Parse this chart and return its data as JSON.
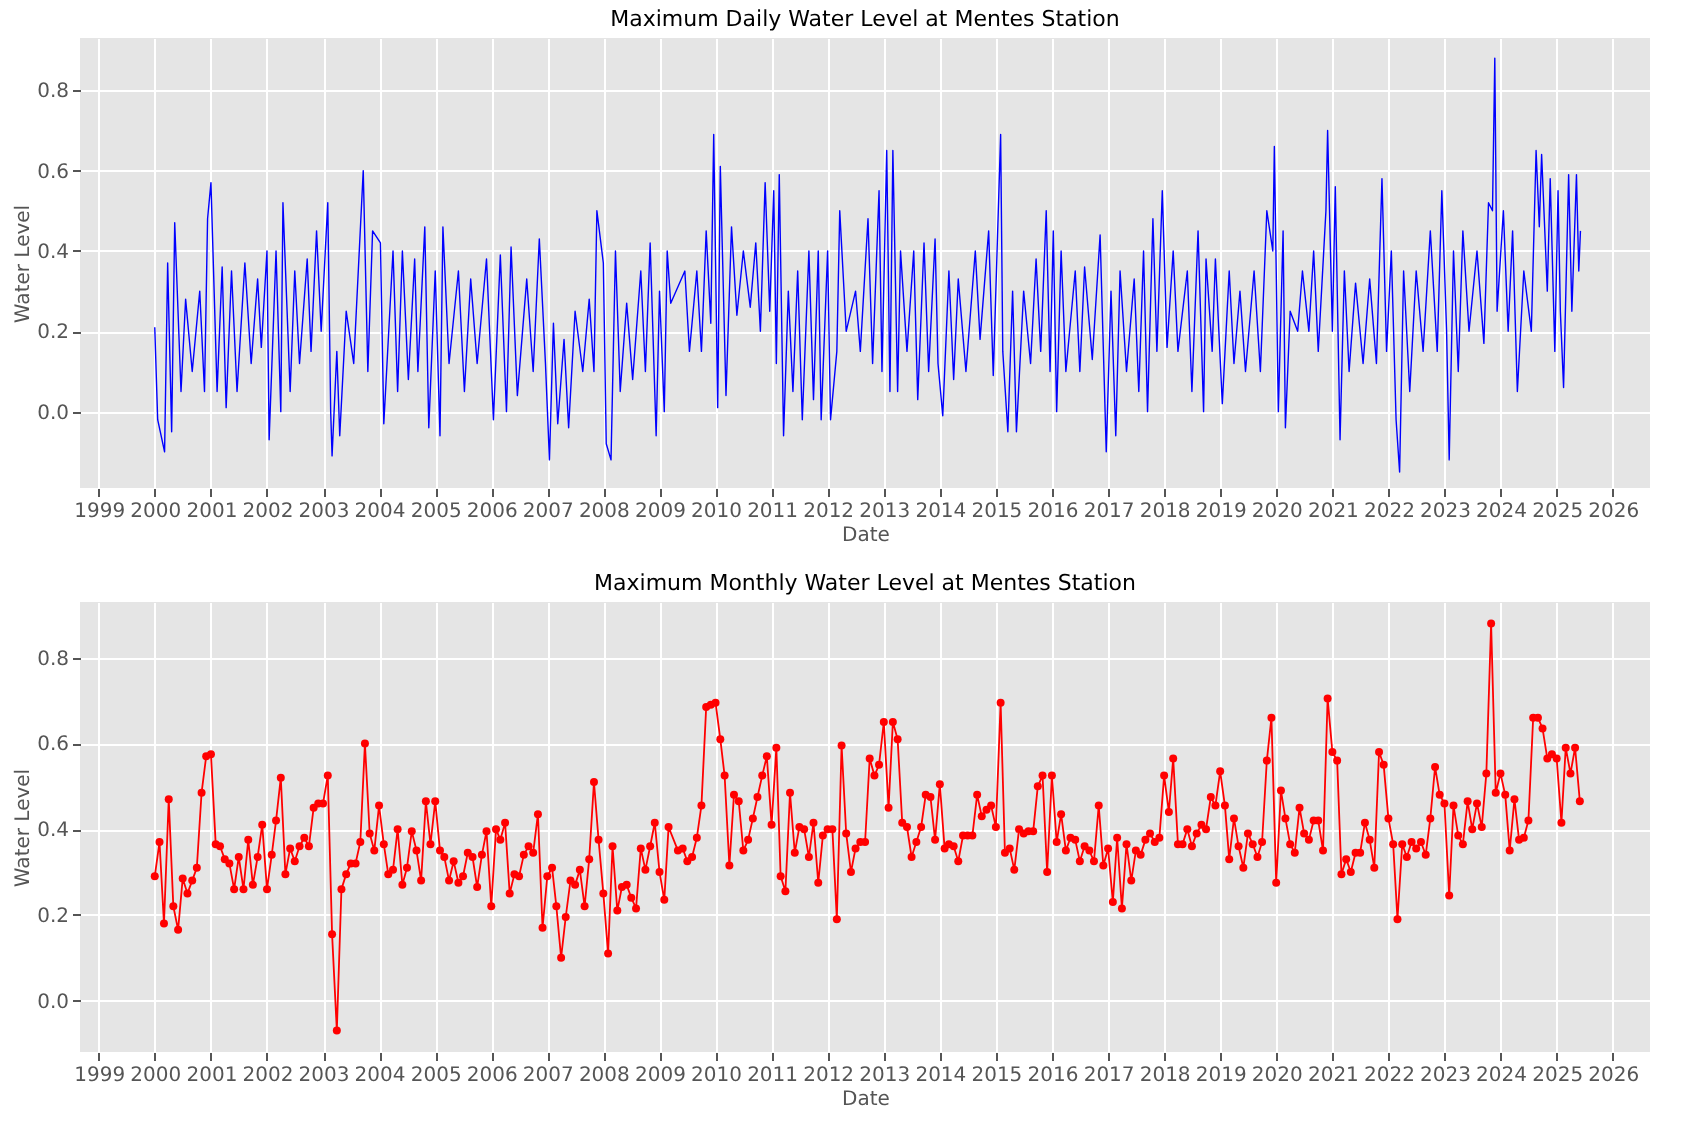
{
  "chart_data": [
    {
      "type": "line",
      "title": "Maximum Daily Water Level at Mentes Station",
      "xlabel": "Date",
      "ylabel": "Water Level",
      "grid": true,
      "xlim": [
        "1998-09",
        "2026-09"
      ],
      "ylim": [
        -0.19,
        0.93
      ],
      "xticks": [
        "1999",
        "2000",
        "2001",
        "2002",
        "2003",
        "2004",
        "2005",
        "2006",
        "2007",
        "2008",
        "2009",
        "2010",
        "2011",
        "2012",
        "2013",
        "2014",
        "2015",
        "2016",
        "2017",
        "2018",
        "2019",
        "2020",
        "2021",
        "2022",
        "2023",
        "2024",
        "2025",
        "2026"
      ],
      "yticks": [
        {
          "value": 0,
          "label": "0.0"
        },
        0.2,
        0.4,
        0.6,
        0.8
      ],
      "x": [
        "2000-01-01",
        "2000-01-20",
        "2000-03-05",
        "2000-03-25",
        "2000-04-20",
        "2000-05-10",
        "2000-06-20",
        "2000-07-20",
        "2000-09-01",
        "2000-10-20",
        "2000-11-20",
        "2000-12-10",
        "2001-01-01",
        "2001-02-10",
        "2001-03-15",
        "2001-04-10",
        "2001-05-15",
        "2001-06-20",
        "2001-08-10",
        "2001-09-20",
        "2001-11-01",
        "2001-11-25",
        "2002-01-01",
        "2002-01-15",
        "2002-03-01",
        "2002-04-01",
        "2002-04-15",
        "2002-06-01",
        "2002-07-01",
        "2002-08-01",
        "2002-09-20",
        "2002-10-15",
        "2002-11-20",
        "2002-12-20",
        "2003-02-01",
        "2003-02-20",
        "2003-03-01",
        "2003-04-01",
        "2003-04-20",
        "2003-06-01",
        "2003-07-20",
        "2003-09-20",
        "2003-10-20",
        "2003-11-20",
        "2004-01-10",
        "2004-02-01",
        "2004-04-01",
        "2004-05-01",
        "2004-06-01",
        "2004-07-10",
        "2004-08-20",
        "2004-09-10",
        "2004-10-25",
        "2004-11-20",
        "2005-01-01",
        "2005-02-01",
        "2005-02-20",
        "2005-04-01",
        "2005-06-01",
        "2005-07-10",
        "2005-08-20",
        "2005-10-01",
        "2005-12-01",
        "2006-01-15",
        "2006-03-01",
        "2006-04-10",
        "2006-05-10",
        "2006-06-20",
        "2006-08-20",
        "2006-10-01",
        "2006-11-10",
        "2006-12-20",
        "2007-01-15",
        "2007-02-10",
        "2007-03-10",
        "2007-04-20",
        "2007-05-20",
        "2007-07-01",
        "2007-08-20",
        "2007-10-01",
        "2007-11-01",
        "2007-11-20",
        "2008-01-01",
        "2008-01-20",
        "2008-02-20",
        "2008-03-20",
        "2008-04-20",
        "2008-06-01",
        "2008-07-10",
        "2008-09-01",
        "2008-10-01",
        "2008-11-01",
        "2008-12-10",
        "2009-01-01",
        "2009-02-01",
        "2009-02-20",
        "2009-03-15",
        "2009-06-15",
        "2009-07-15",
        "2009-09-01",
        "2009-10-01",
        "2009-11-01",
        "2009-12-01",
        "2009-12-20",
        "2010-01-15",
        "2010-02-01",
        "2010-03-10",
        "2010-04-15",
        "2010-05-20",
        "2010-07-01",
        "2010-08-15",
        "2010-09-20",
        "2010-10-20",
        "2010-11-20",
        "2010-12-20",
        "2011-01-15",
        "2011-02-01",
        "2011-02-20",
        "2011-03-20",
        "2011-04-20",
        "2011-05-20",
        "2011-06-20",
        "2011-07-20",
        "2011-09-01",
        "2011-10-01",
        "2011-11-01",
        "2011-11-20",
        "2012-01-01",
        "2012-01-20",
        "2012-03-01",
        "2012-03-20",
        "2012-05-01",
        "2012-07-01",
        "2012-08-01",
        "2012-09-20",
        "2012-10-20",
        "2012-12-01",
        "2012-12-20",
        "2013-01-20",
        "2013-02-10",
        "2013-03-01",
        "2013-04-01",
        "2013-04-20",
        "2013-06-01",
        "2013-07-15",
        "2013-08-10",
        "2013-09-20",
        "2013-10-20",
        "2013-12-01",
        "2013-12-20",
        "2014-01-20",
        "2014-03-01",
        "2014-04-01",
        "2014-05-01",
        "2014-06-20",
        "2014-08-20",
        "2014-09-20",
        "2014-11-15",
        "2014-12-15",
        "2015-02-01",
        "2015-02-15",
        "2015-03-20",
        "2015-04-20",
        "2015-05-15",
        "2015-07-01",
        "2015-08-15",
        "2015-09-20",
        "2015-10-20",
        "2015-11-25",
        "2015-12-20",
        "2016-01-10",
        "2016-02-01",
        "2016-03-01",
        "2016-04-01",
        "2016-06-01",
        "2016-07-01",
        "2016-08-01",
        "2016-09-20",
        "2016-11-10",
        "2016-12-20",
        "2017-01-20",
        "2017-02-20",
        "2017-03-20",
        "2017-05-01",
        "2017-06-20",
        "2017-07-20",
        "2017-08-20",
        "2017-09-15",
        "2017-10-20",
        "2017-11-15",
        "2017-12-20",
        "2018-01-20",
        "2018-03-01",
        "2018-04-01",
        "2018-06-01",
        "2018-07-01",
        "2018-08-10",
        "2018-09-15",
        "2018-10-01",
        "2018-11-10",
        "2018-12-01",
        "2019-01-15",
        "2019-03-01",
        "2019-04-01",
        "2019-05-10",
        "2019-06-15",
        "2019-08-10",
        "2019-09-20",
        "2019-11-01",
        "2019-12-10",
        "2019-12-20",
        "2020-01-15",
        "2020-02-15",
        "2020-03-01",
        "2020-04-01",
        "2020-05-20",
        "2020-06-20",
        "2020-08-01",
        "2020-09-01",
        "2020-10-01",
        "2020-11-20",
        "2020-12-01",
        "2021-01-01",
        "2021-01-20",
        "2021-02-20",
        "2021-03-20",
        "2021-04-20",
        "2021-06-01",
        "2021-07-20",
        "2021-09-01",
        "2021-10-15",
        "2021-11-20",
        "2021-12-20",
        "2022-01-20",
        "2022-02-20",
        "2022-03-15",
        "2022-04-10",
        "2022-05-20",
        "2022-07-01",
        "2022-08-15",
        "2022-10-01",
        "2022-11-15",
        "2022-12-15",
        "2023-01-15",
        "2023-02-01",
        "2023-03-01",
        "2023-04-01",
        "2023-05-01",
        "2023-06-10",
        "2023-08-01",
        "2023-09-15",
        "2023-10-15",
        "2023-11-10",
        "2023-11-25",
        "2023-12-10",
        "2024-01-20",
        "2024-02-20",
        "2024-03-20",
        "2024-04-20",
        "2024-06-01",
        "2024-07-20",
        "2024-08-20",
        "2024-09-10",
        "2024-09-25",
        "2024-11-01",
        "2024-11-20",
        "2024-12-20",
        "2025-01-10",
        "2025-01-25",
        "2025-02-15",
        "2025-03-20",
        "2025-04-10",
        "2025-05-10",
        "2025-05-25",
        "2025-06-05"
      ],
      "series": [
        {
          "color": "#0000ff",
          "values": [
            0.21,
            -0.02,
            -0.1,
            0.37,
            -0.05,
            0.47,
            0.05,
            0.28,
            0.1,
            0.3,
            0.05,
            0.48,
            0.57,
            0.05,
            0.36,
            0.01,
            0.35,
            0.05,
            0.37,
            0.12,
            0.33,
            0.16,
            0.4,
            -0.07,
            0.4,
            0.0,
            0.52,
            0.05,
            0.35,
            0.12,
            0.38,
            0.15,
            0.45,
            0.2,
            0.52,
            0.0,
            -0.11,
            0.15,
            -0.06,
            0.25,
            0.12,
            0.6,
            0.1,
            0.45,
            0.42,
            -0.03,
            0.4,
            0.05,
            0.4,
            0.08,
            0.38,
            0.1,
            0.46,
            -0.04,
            0.35,
            -0.06,
            0.46,
            0.12,
            0.35,
            0.05,
            0.33,
            0.12,
            0.38,
            -0.02,
            0.39,
            0.0,
            0.41,
            0.04,
            0.33,
            0.1,
            0.43,
            0.12,
            -0.12,
            0.22,
            -0.03,
            0.18,
            -0.04,
            0.25,
            0.1,
            0.28,
            0.1,
            0.5,
            0.37,
            -0.08,
            -0.12,
            0.4,
            0.05,
            0.27,
            0.08,
            0.35,
            0.1,
            0.42,
            -0.06,
            0.3,
            0.0,
            0.4,
            0.27,
            0.35,
            0.15,
            0.35,
            0.15,
            0.45,
            0.22,
            0.69,
            0.01,
            0.61,
            0.04,
            0.46,
            0.24,
            0.4,
            0.26,
            0.42,
            0.2,
            0.57,
            0.25,
            0.55,
            0.12,
            0.59,
            -0.06,
            0.3,
            0.05,
            0.35,
            -0.02,
            0.4,
            0.03,
            0.4,
            -0.02,
            0.4,
            -0.02,
            0.15,
            0.5,
            0.2,
            0.3,
            0.15,
            0.48,
            0.12,
            0.55,
            0.1,
            0.65,
            0.05,
            0.65,
            0.05,
            0.4,
            0.15,
            0.4,
            0.03,
            0.42,
            0.1,
            0.43,
            0.12,
            -0.01,
            0.35,
            0.08,
            0.33,
            0.1,
            0.4,
            0.18,
            0.45,
            0.09,
            0.69,
            0.15,
            -0.05,
            0.3,
            -0.05,
            0.3,
            0.12,
            0.38,
            0.15,
            0.5,
            0.1,
            0.45,
            0.0,
            0.4,
            0.1,
            0.35,
            0.1,
            0.36,
            0.13,
            0.44,
            -0.1,
            0.3,
            -0.06,
            0.35,
            0.1,
            0.33,
            0.05,
            0.4,
            0.0,
            0.48,
            0.15,
            0.55,
            0.16,
            0.4,
            0.15,
            0.35,
            0.05,
            0.45,
            0.0,
            0.38,
            0.15,
            0.38,
            0.02,
            0.35,
            0.12,
            0.3,
            0.1,
            0.35,
            0.1,
            0.5,
            0.4,
            0.66,
            0.0,
            0.45,
            -0.04,
            0.25,
            0.2,
            0.35,
            0.2,
            0.4,
            0.15,
            0.5,
            0.7,
            0.2,
            0.56,
            -0.07,
            0.35,
            0.1,
            0.32,
            0.12,
            0.33,
            0.12,
            0.58,
            0.15,
            0.4,
            -0.02,
            -0.15,
            0.35,
            0.05,
            0.35,
            0.15,
            0.45,
            0.15,
            0.55,
            0.2,
            -0.12,
            0.4,
            0.1,
            0.45,
            0.2,
            0.4,
            0.17,
            0.52,
            0.5,
            0.88,
            0.25,
            0.5,
            0.2,
            0.45,
            0.05,
            0.35,
            0.2,
            0.65,
            0.46,
            0.64,
            0.3,
            0.58,
            0.15,
            0.55,
            0.25,
            0.06,
            0.59,
            0.25,
            0.59,
            0.35,
            0.45
          ]
        }
      ]
    },
    {
      "type": "line",
      "title": "Maximum Monthly Water Level at Mentes Station",
      "xlabel": "Date",
      "ylabel": "Water Level",
      "grid": true,
      "marker": "circle",
      "xlim": [
        "1998-09",
        "2026-09"
      ],
      "ylim": [
        -0.12,
        0.93
      ],
      "xticks": [
        "1999",
        "2000",
        "2001",
        "2002",
        "2003",
        "2004",
        "2005",
        "2006",
        "2007",
        "2008",
        "2009",
        "2010",
        "2011",
        "2012",
        "2013",
        "2014",
        "2015",
        "2016",
        "2017",
        "2018",
        "2019",
        "2020",
        "2021",
        "2022",
        "2023",
        "2024",
        "2025",
        "2026"
      ],
      "yticks": [
        {
          "value": 0,
          "label": "0.0"
        },
        0.2,
        0.4,
        0.6,
        0.8
      ],
      "x": [
        "2000-01",
        "2000-02",
        "2000-03",
        "2000-04",
        "2000-05",
        "2000-06",
        "2000-07",
        "2000-08",
        "2000-09",
        "2000-10",
        "2000-11",
        "2000-12",
        "2001-01",
        "2001-02",
        "2001-03",
        "2001-04",
        "2001-05",
        "2001-06",
        "2001-07",
        "2001-08",
        "2001-09",
        "2001-10",
        "2001-11",
        "2001-12",
        "2002-01",
        "2002-02",
        "2002-03",
        "2002-04",
        "2002-05",
        "2002-06",
        "2002-07",
        "2002-08",
        "2002-09",
        "2002-10",
        "2002-11",
        "2002-12",
        "2003-01",
        "2003-02",
        "2003-03",
        "2003-04",
        "2003-05",
        "2003-06",
        "2003-07",
        "2003-08",
        "2003-09",
        "2003-10",
        "2003-11",
        "2003-12",
        "2004-01",
        "2004-02",
        "2004-03",
        "2004-04",
        "2004-05",
        "2004-06",
        "2004-07",
        "2004-08",
        "2004-09",
        "2004-10",
        "2004-11",
        "2004-12",
        "2005-01",
        "2005-02",
        "2005-03",
        "2005-04",
        "2005-05",
        "2005-06",
        "2005-07",
        "2005-08",
        "2005-09",
        "2005-10",
        "2005-11",
        "2005-12",
        "2006-01",
        "2006-02",
        "2006-03",
        "2006-04",
        "2006-05",
        "2006-06",
        "2006-07",
        "2006-08",
        "2006-09",
        "2006-10",
        "2006-11",
        "2006-12",
        "2007-01",
        "2007-02",
        "2007-03",
        "2007-04",
        "2007-05",
        "2007-06",
        "2007-07",
        "2007-08",
        "2007-09",
        "2007-10",
        "2007-11",
        "2007-12",
        "2008-01",
        "2008-02",
        "2008-03",
        "2008-04",
        "2008-05",
        "2008-06",
        "2008-07",
        "2008-08",
        "2008-09",
        "2008-10",
        "2008-11",
        "2008-12",
        "2009-01",
        "2009-02",
        "2009-03",
        "2009-05",
        "2009-06",
        "2009-07",
        "2009-08",
        "2009-09",
        "2009-10",
        "2009-11",
        "2009-12",
        "2010-01",
        "2010-02",
        "2010-03",
        "2010-04",
        "2010-05",
        "2010-06",
        "2010-07",
        "2010-08",
        "2010-09",
        "2010-10",
        "2010-11",
        "2010-12",
        "2011-01",
        "2011-02",
        "2011-03",
        "2011-04",
        "2011-05",
        "2011-06",
        "2011-07",
        "2011-08",
        "2011-09",
        "2011-10",
        "2011-11",
        "2011-12",
        "2012-01",
        "2012-02",
        "2012-03",
        "2012-04",
        "2012-05",
        "2012-06",
        "2012-07",
        "2012-08",
        "2012-09",
        "2012-10",
        "2012-11",
        "2012-12",
        "2013-01",
        "2013-02",
        "2013-03",
        "2013-04",
        "2013-05",
        "2013-06",
        "2013-07",
        "2013-08",
        "2013-09",
        "2013-10",
        "2013-11",
        "2013-12",
        "2014-01",
        "2014-02",
        "2014-03",
        "2014-04",
        "2014-05",
        "2014-06",
        "2014-07",
        "2014-08",
        "2014-09",
        "2014-10",
        "2014-11",
        "2014-12",
        "2015-01",
        "2015-02",
        "2015-03",
        "2015-04",
        "2015-05",
        "2015-06",
        "2015-07",
        "2015-08",
        "2015-09",
        "2015-10",
        "2015-11",
        "2015-12",
        "2016-01",
        "2016-02",
        "2016-03",
        "2016-04",
        "2016-05",
        "2016-06",
        "2016-07",
        "2016-08",
        "2016-09",
        "2016-10",
        "2016-11",
        "2016-12",
        "2017-01",
        "2017-02",
        "2017-03",
        "2017-04",
        "2017-05",
        "2017-06",
        "2017-07",
        "2017-08",
        "2017-09",
        "2017-10",
        "2017-11",
        "2017-12",
        "2018-01",
        "2018-02",
        "2018-03",
        "2018-04",
        "2018-05",
        "2018-06",
        "2018-07",
        "2018-08",
        "2018-09",
        "2018-10",
        "2018-11",
        "2018-12",
        "2019-01",
        "2019-02",
        "2019-03",
        "2019-04",
        "2019-05",
        "2019-06",
        "2019-07",
        "2019-08",
        "2019-09",
        "2019-10",
        "2019-11",
        "2019-12",
        "2020-01",
        "2020-02",
        "2020-03",
        "2020-04",
        "2020-05",
        "2020-06",
        "2020-07",
        "2020-08",
        "2020-09",
        "2020-10",
        "2020-11",
        "2020-12",
        "2021-01",
        "2021-02",
        "2021-03",
        "2021-04",
        "2021-05",
        "2021-06",
        "2021-07",
        "2021-08",
        "2021-09",
        "2021-10",
        "2021-11",
        "2021-12",
        "2022-01",
        "2022-02",
        "2022-03",
        "2022-04",
        "2022-05",
        "2022-06",
        "2022-07",
        "2022-08",
        "2022-09",
        "2022-10",
        "2022-11",
        "2022-12",
        "2023-01",
        "2023-02",
        "2023-03",
        "2023-04",
        "2023-05",
        "2023-06",
        "2023-07",
        "2023-08",
        "2023-09",
        "2023-10",
        "2023-11",
        "2023-12",
        "2024-01",
        "2024-02",
        "2024-03",
        "2024-04",
        "2024-05",
        "2024-06",
        "2024-07",
        "2024-08",
        "2024-09",
        "2024-10",
        "2024-11",
        "2024-12",
        "2025-01",
        "2025-02",
        "2025-03",
        "2025-04",
        "2025-05",
        "2025-06"
      ],
      "series": [
        {
          "color": "#ff0000",
          "values": [
            0.29,
            0.37,
            0.18,
            0.47,
            0.22,
            0.165,
            0.285,
            0.25,
            0.28,
            0.31,
            0.485,
            0.57,
            0.575,
            0.365,
            0.36,
            0.33,
            0.32,
            0.26,
            0.335,
            0.26,
            0.375,
            0.27,
            0.335,
            0.41,
            0.26,
            0.34,
            0.42,
            0.52,
            0.295,
            0.355,
            0.325,
            0.36,
            0.38,
            0.36,
            0.45,
            0.46,
            0.46,
            0.525,
            0.155,
            -0.07,
            0.26,
            0.295,
            0.32,
            0.32,
            0.37,
            0.6,
            0.39,
            0.35,
            0.455,
            0.365,
            0.295,
            0.305,
            0.4,
            0.27,
            0.31,
            0.395,
            0.35,
            0.28,
            0.465,
            0.365,
            0.465,
            0.35,
            0.335,
            0.28,
            0.325,
            0.275,
            0.29,
            0.345,
            0.335,
            0.265,
            0.34,
            0.395,
            0.22,
            0.4,
            0.375,
            0.415,
            0.25,
            0.295,
            0.29,
            0.34,
            0.36,
            0.345,
            0.435,
            0.17,
            0.29,
            0.31,
            0.22,
            0.1,
            0.195,
            0.28,
            0.27,
            0.305,
            0.22,
            0.33,
            0.51,
            0.375,
            0.25,
            0.11,
            0.36,
            0.21,
            0.265,
            0.27,
            0.24,
            0.215,
            0.355,
            0.305,
            0.36,
            0.415,
            0.3,
            0.235,
            0.405,
            0.35,
            0.355,
            0.325,
            0.335,
            0.38,
            0.455,
            0.685,
            0.69,
            0.695,
            0.61,
            0.525,
            0.315,
            0.48,
            0.465,
            0.35,
            0.375,
            0.425,
            0.475,
            0.525,
            0.57,
            0.41,
            0.59,
            0.29,
            0.255,
            0.485,
            0.345,
            0.405,
            0.4,
            0.335,
            0.415,
            0.275,
            0.385,
            0.4,
            0.4,
            0.19,
            0.595,
            0.39,
            0.3,
            0.355,
            0.37,
            0.37,
            0.565,
            0.525,
            0.55,
            0.65,
            0.45,
            0.65,
            0.61,
            0.415,
            0.405,
            0.335,
            0.37,
            0.405,
            0.48,
            0.475,
            0.375,
            0.505,
            0.355,
            0.365,
            0.36,
            0.325,
            0.385,
            0.385,
            0.385,
            0.48,
            0.43,
            0.445,
            0.455,
            0.405,
            0.695,
            0.345,
            0.355,
            0.305,
            0.4,
            0.39,
            0.395,
            0.395,
            0.5,
            0.525,
            0.3,
            0.525,
            0.37,
            0.435,
            0.35,
            0.38,
            0.375,
            0.325,
            0.36,
            0.35,
            0.325,
            0.455,
            0.315,
            0.355,
            0.23,
            0.38,
            0.215,
            0.365,
            0.28,
            0.35,
            0.34,
            0.375,
            0.39,
            0.37,
            0.38,
            0.525,
            0.44,
            0.565,
            0.365,
            0.365,
            0.4,
            0.36,
            0.39,
            0.41,
            0.4,
            0.475,
            0.455,
            0.535,
            0.455,
            0.33,
            0.425,
            0.36,
            0.31,
            0.39,
            0.365,
            0.335,
            0.37,
            0.56,
            0.66,
            0.275,
            0.49,
            0.425,
            0.365,
            0.345,
            0.45,
            0.39,
            0.375,
            0.42,
            0.42,
            0.35,
            0.705,
            0.58,
            0.56,
            0.295,
            0.33,
            0.3,
            0.345,
            0.345,
            0.415,
            0.375,
            0.31,
            0.58,
            0.55,
            0.425,
            0.365,
            0.19,
            0.365,
            0.335,
            0.37,
            0.355,
            0.37,
            0.34,
            0.425,
            0.545,
            0.48,
            0.46,
            0.245,
            0.455,
            0.385,
            0.365,
            0.465,
            0.4,
            0.46,
            0.405,
            0.53,
            0.88,
            0.485,
            0.53,
            0.48,
            0.35,
            0.47,
            0.375,
            0.38,
            0.42,
            0.66,
            0.66,
            0.635,
            0.565,
            0.575,
            0.565,
            0.415,
            0.59,
            0.53,
            0.59,
            0.465
          ]
        }
      ]
    }
  ]
}
